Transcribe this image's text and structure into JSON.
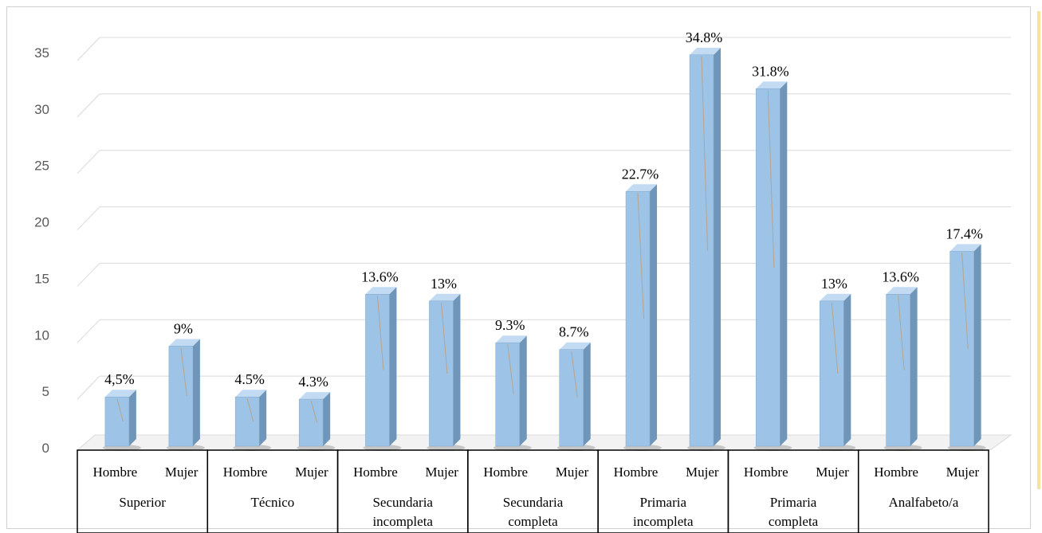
{
  "chart_data": {
    "type": "bar",
    "y_ticks": [
      "0",
      "5",
      "10",
      "15",
      "20",
      "25",
      "30",
      "35"
    ],
    "ylim": [
      0,
      35
    ],
    "grid": true,
    "groups": [
      {
        "label": [
          "Superior"
        ],
        "bars": [
          {
            "sub": "Hombre",
            "value": 4.5,
            "label": "4,5%"
          },
          {
            "sub": "Mujer",
            "value": 9,
            "label": "9%"
          }
        ]
      },
      {
        "label": [
          "Técnico"
        ],
        "bars": [
          {
            "sub": "Hombre",
            "value": 4.5,
            "label": "4.5%"
          },
          {
            "sub": "Mujer",
            "value": 4.3,
            "label": "4.3%"
          }
        ]
      },
      {
        "label": [
          "Secundaria",
          "incompleta"
        ],
        "bars": [
          {
            "sub": "Hombre",
            "value": 13.6,
            "label": "13.6%"
          },
          {
            "sub": "Mujer",
            "value": 13,
            "label": "13%"
          }
        ]
      },
      {
        "label": [
          "Secundaria",
          "completa"
        ],
        "bars": [
          {
            "sub": "Hombre",
            "value": 9.3,
            "label": "9.3%"
          },
          {
            "sub": "Mujer",
            "value": 8.7,
            "label": "8.7%"
          }
        ]
      },
      {
        "label": [
          "Primaria",
          "incompleta"
        ],
        "bars": [
          {
            "sub": "Hombre",
            "value": 22.7,
            "label": "22.7%"
          },
          {
            "sub": "Mujer",
            "value": 34.8,
            "label": "34.8%"
          }
        ]
      },
      {
        "label": [
          "Primaria",
          "completa"
        ],
        "bars": [
          {
            "sub": "Hombre",
            "value": 31.8,
            "label": "31.8%"
          },
          {
            "sub": "Mujer",
            "value": 13,
            "label": "13%"
          }
        ]
      },
      {
        "label": [
          "Analfabeto/a"
        ],
        "bars": [
          {
            "sub": "Hombre",
            "value": 13.6,
            "label": "13.6%"
          },
          {
            "sub": "Mujer",
            "value": 17.4,
            "label": "17.4%"
          }
        ]
      }
    ],
    "colors": {
      "bar_face": "#9dc3e6",
      "bar_side": "#6f95b8",
      "bar_top": "#c2dbf2",
      "grid": "#d9d9d9"
    }
  }
}
